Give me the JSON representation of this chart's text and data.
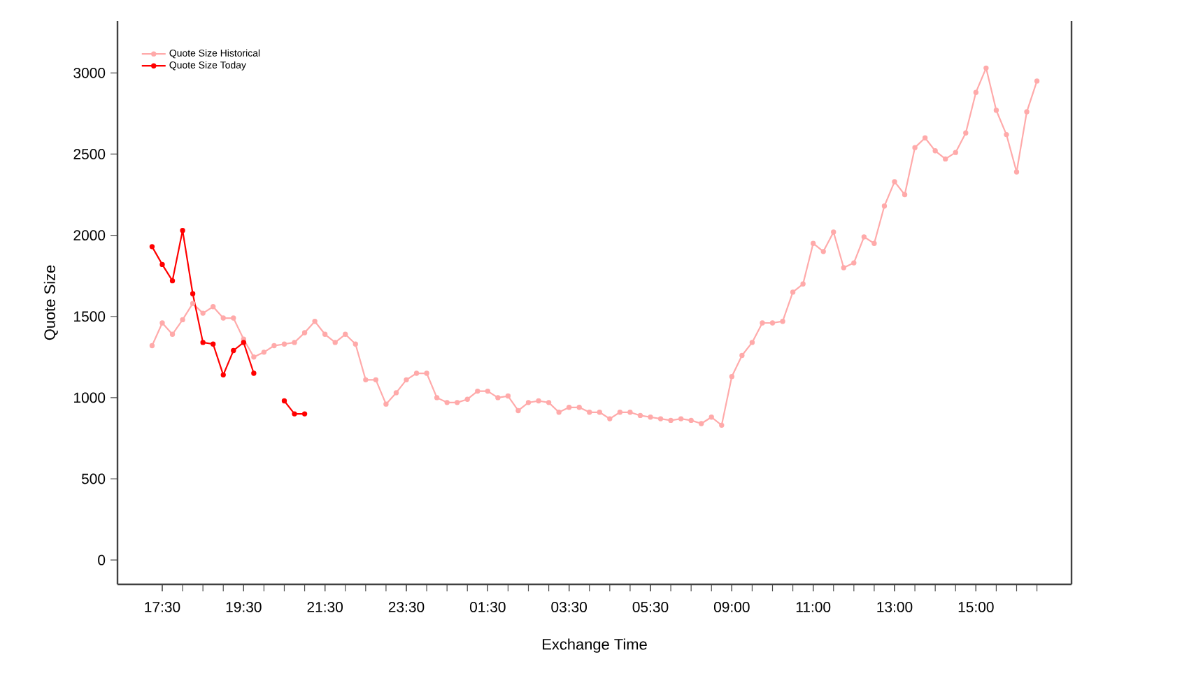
{
  "chart_data": {
    "type": "line",
    "xlabel": "Exchange Time",
    "ylabel": "Quote Size",
    "categories": [
      null,
      "17:30",
      null,
      null,
      null,
      null,
      null,
      null,
      null,
      "19:30",
      null,
      null,
      null,
      null,
      null,
      null,
      null,
      "21:30",
      null,
      null,
      null,
      null,
      null,
      null,
      null,
      "23:30",
      null,
      null,
      null,
      null,
      null,
      null,
      null,
      "01:30",
      null,
      null,
      null,
      null,
      null,
      null,
      null,
      "03:30",
      null,
      null,
      null,
      null,
      null,
      null,
      null,
      "05:30",
      null,
      null,
      null,
      null,
      null,
      null,
      null,
      "09:00",
      null,
      null,
      null,
      null,
      null,
      null,
      null,
      "11:00",
      null,
      null,
      null,
      null,
      null,
      null,
      null,
      "13:00",
      null,
      null,
      null,
      null,
      null,
      null,
      null,
      "15:00",
      null,
      null,
      null,
      null,
      null,
      null
    ],
    "series": [
      {
        "name": "Quote Size Historical",
        "color": "#ffaaaa",
        "values": [
          1320,
          1460,
          1390,
          1480,
          1580,
          1520,
          1560,
          1490,
          1490,
          1360,
          1250,
          1280,
          1320,
          1330,
          1340,
          1400,
          1470,
          1390,
          1340,
          1390,
          1330,
          1110,
          1110,
          960,
          1030,
          1110,
          1150,
          1150,
          1000,
          970,
          970,
          990,
          1040,
          1040,
          1000,
          1010,
          920,
          970,
          980,
          970,
          910,
          940,
          940,
          910,
          910,
          870,
          910,
          910,
          890,
          880,
          870,
          860,
          870,
          860,
          840,
          880,
          830,
          1130,
          1260,
          1340,
          1460,
          1460,
          1470,
          1650,
          1700,
          1950,
          1900,
          2020,
          1800,
          1830,
          1990,
          1950,
          2180,
          2330,
          2250,
          2540,
          2600,
          2520,
          2470,
          2510,
          2630,
          2880,
          3030,
          2770,
          2620,
          2390,
          2760,
          2950
        ]
      },
      {
        "name": "Quote Size Today",
        "color": "#ff0000",
        "values": [
          1930,
          1820,
          1720,
          2030,
          1640,
          1340,
          1330,
          1140,
          1290,
          1340,
          1150,
          null,
          null,
          980,
          900,
          900,
          null,
          null,
          null,
          null,
          null,
          null,
          null,
          null,
          null,
          null,
          null,
          null,
          null,
          null,
          null,
          null,
          null,
          null,
          null,
          null,
          null,
          null,
          null,
          null,
          null,
          null,
          null,
          null,
          null,
          null,
          null,
          null,
          null,
          null,
          null,
          null,
          null,
          null,
          null,
          null,
          null,
          null,
          null,
          null,
          null,
          null,
          null,
          null,
          null,
          null,
          null,
          null,
          null,
          null,
          null,
          null,
          null,
          null,
          null,
          null,
          null,
          null,
          null,
          null,
          null,
          null,
          null,
          null,
          null,
          null,
          null,
          null
        ]
      }
    ],
    "ylim": [
      -150,
      3320
    ],
    "yticks": [
      0,
      500,
      1000,
      1500,
      2000,
      2500,
      3000
    ],
    "legend": "top left",
    "marker": "circle",
    "line_style": "solid",
    "grid": false
  }
}
